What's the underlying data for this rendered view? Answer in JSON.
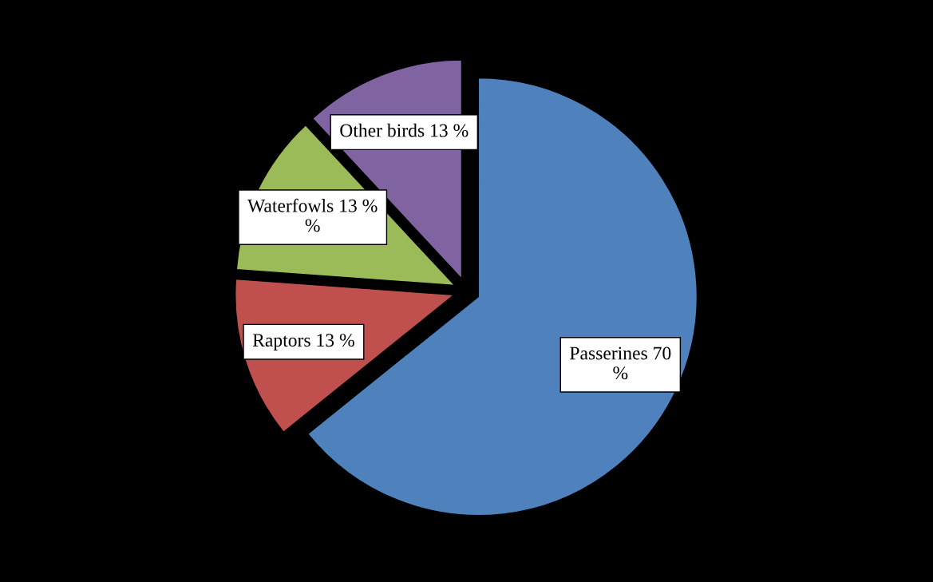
{
  "chart_data": {
    "type": "pie",
    "categories": [
      "Passerines",
      "Raptors",
      "Waterfowls",
      "Other birds"
    ],
    "values": [
      70,
      13,
      13,
      13
    ],
    "colors": [
      "#4f81bd",
      "#c0504d",
      "#9bbb59",
      "#8064a2"
    ],
    "value_labels": [
      "70\n%",
      "13 %",
      "13 %\n%",
      "13 %"
    ]
  }
}
